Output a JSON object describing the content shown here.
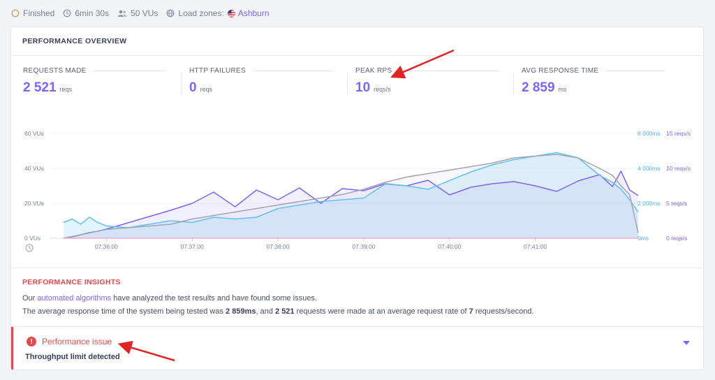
{
  "status": {
    "state": "Finished",
    "duration": "6min 30s",
    "vus": "50 VUs",
    "zones_label": "Load zones:",
    "zone": "Ashburn"
  },
  "overview": {
    "title": "PERFORMANCE OVERVIEW",
    "metrics": [
      {
        "label": "REQUESTS MADE",
        "value": "2 521",
        "unit": "reqs"
      },
      {
        "label": "HTTP FAILURES",
        "value": "0",
        "unit": "reqs"
      },
      {
        "label": "PEAK RPS",
        "value": "10",
        "unit": "reqs/s"
      },
      {
        "label": "AVG RESPONSE TIME",
        "value": "2 859",
        "unit": "ms"
      }
    ]
  },
  "chart_data": {
    "type": "line",
    "x_ticks": [
      "07:36:00",
      "07:37:00",
      "07:38:00",
      "07:39:00",
      "07:40:00",
      "07:41:00"
    ],
    "y_left_ticks": [
      "0 VUs",
      "20 VUs",
      "40 VUs",
      "60 VUs"
    ],
    "y_right_ms_ticks": [
      "0ms",
      "2 000ms",
      "4 000ms",
      "6 000ms"
    ],
    "y_right_rps_ticks": [
      "0 reqs/s",
      "5 reqs/s",
      "10 reqs/s",
      "15 reqs/s"
    ],
    "y_left_range": [
      0,
      60
    ],
    "y_ms_range": [
      0,
      6000
    ],
    "y_rps_range": [
      0,
      15
    ],
    "x_range_min": [
      -0.5,
      6.2
    ],
    "grid": true,
    "colors": {
      "vus": "#a3a3b3",
      "response_time": "#5ec3f2",
      "rps": "#7d64ff",
      "failures": "#f0a0bd"
    },
    "series": [
      {
        "x": [
          -0.5,
          -0.4,
          -0.3,
          -0.2,
          -0.1,
          0,
          0.25,
          0.5,
          0.75,
          1,
          1.25,
          1.5,
          1.75,
          2,
          2.25,
          2.5,
          2.75,
          3,
          3.25,
          3.5,
          3.75,
          4,
          4.25,
          4.5,
          4.75,
          5,
          5.25,
          5.5,
          5.75,
          5.9,
          6.0,
          6.1,
          6.2
        ],
        "values": [
          0,
          1,
          2,
          3,
          4,
          5,
          6,
          7,
          8,
          11,
          13,
          15,
          17,
          19,
          21,
          23,
          25,
          28,
          32,
          35,
          37,
          39,
          41,
          43,
          46,
          47,
          48,
          46,
          40,
          36,
          30,
          25,
          3
        ]
      },
      {
        "x": [
          -0.5,
          -0.4,
          -0.3,
          -0.2,
          -0.1,
          0,
          0.25,
          0.5,
          0.75,
          1,
          1.25,
          1.5,
          1.75,
          2,
          2.25,
          2.5,
          2.75,
          3,
          3.25,
          3.5,
          3.75,
          4,
          4.25,
          4.5,
          4.75,
          5,
          5.25,
          5.5,
          5.75,
          5.9,
          6.0,
          6.1,
          6.2
        ],
        "values": [
          900,
          1100,
          800,
          1200,
          900,
          700,
          600,
          800,
          1000,
          900,
          1200,
          1100,
          1200,
          1700,
          1900,
          2100,
          2200,
          2300,
          3100,
          3000,
          2800,
          3300,
          3800,
          4200,
          4500,
          4700,
          4900,
          4600,
          3600,
          3200,
          2800,
          2200,
          1500
        ]
      },
      {
        "x": [
          -0.5,
          -0.4,
          -0.3,
          -0.2,
          -0.1,
          0,
          0.25,
          0.5,
          0.75,
          1,
          1.25,
          1.5,
          1.75,
          2,
          2.25,
          2.5,
          2.75,
          3,
          3.25,
          3.5,
          3.75,
          4,
          4.25,
          4.5,
          4.75,
          5,
          5.25,
          5.5,
          5.75,
          5.9,
          6.0,
          6.1,
          6.2
        ],
        "values": [
          0,
          0.2,
          0.5,
          0.8,
          1,
          1.3,
          2.2,
          3.1,
          4,
          5,
          6.6,
          4.5,
          6.9,
          5.5,
          7.2,
          5,
          7.1,
          6.8,
          7.8,
          7.5,
          8.3,
          6.2,
          7.3,
          7.8,
          8.1,
          7.5,
          6.7,
          8.2,
          9.1,
          7.4,
          9.6,
          6.9,
          6.1
        ]
      },
      {
        "x": [
          -0.5,
          6.2
        ],
        "values": [
          0,
          0
        ]
      }
    ]
  },
  "insights": {
    "title": "PERFORMANCE INSIGHTS",
    "line1_pre": "Our ",
    "line1_link": "automated algorithms",
    "line1_post": " have analyzed the test results and have found some issues.",
    "line2_a": "The average response time of the system being tested was ",
    "line2_ms": "2 859ms",
    "line2_b": ", and ",
    "line2_reqs": "2 521",
    "line2_c": " requests were made at an average request rate of ",
    "line2_rate": "7",
    "line2_d": " requests/second."
  },
  "issue": {
    "title": "Performance issue",
    "subtitle": "Throughput limit detected"
  }
}
